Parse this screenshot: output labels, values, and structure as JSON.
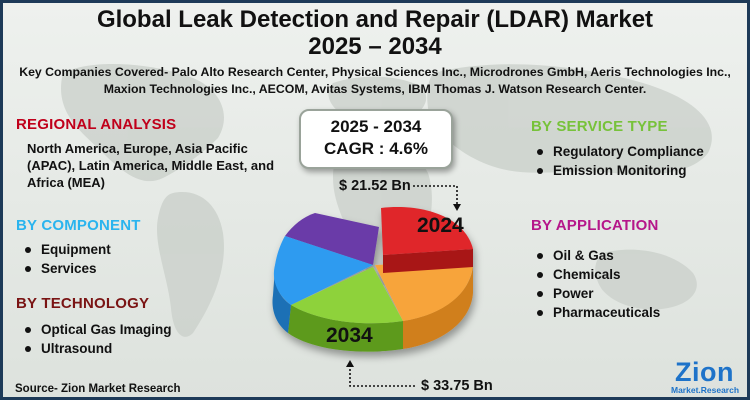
{
  "title_line1": "Global Leak Detection and Repair (LDAR) Market",
  "title_line2": "2025 – 2034",
  "companies_text": "Key Companies Covered- Palo Alto Research Center, Physical Sciences Inc., Microdrones GmbH, Aeris Technologies Inc., Maxion Technologies Inc., AECOM, Avitas Systems, IBM Thomas J. Watson Research Center.",
  "regional": {
    "heading": "REGIONAL ANALYSIS",
    "text": "North America, Europe, Asia Pacific (APAC), Latin America, Middle East, and Africa (MEA)",
    "color": "#c0001b"
  },
  "component": {
    "heading": "BY COMPONENT",
    "items": [
      "Equipment",
      "Services"
    ],
    "color": "#2ab4ee"
  },
  "technology": {
    "heading": "BY TECHNOLOGY",
    "items": [
      "Optical Gas Imaging",
      "Ultrasound"
    ],
    "color": "#7a1414"
  },
  "service_type": {
    "heading": "BY SERVICE TYPE",
    "items": [
      "Regulatory Compliance",
      "Emission Monitoring"
    ],
    "color": "#77c23a"
  },
  "application": {
    "heading": "BY APPLICATION",
    "items": [
      "Oil & Gas",
      "Chemicals",
      "Power",
      "Pharmaceuticals"
    ],
    "color": "#b5168a"
  },
  "cagr": {
    "years": "2025 - 2034",
    "value": "CAGR : 4.6%"
  },
  "market_value_2024": "$  21.52 Bn",
  "market_value_2034": "$ 33.75 Bn",
  "year_2024": "2024",
  "year_2034": "2034",
  "source": "Source- Zion Market Research",
  "logo": {
    "name": "Zion",
    "sub": "Market.Research"
  },
  "colors": {
    "pie_red": "#e0262b",
    "pie_orange": "#f7a43a",
    "pie_green": "#8ed23a",
    "pie_blue": "#2d9bf0",
    "pie_purple": "#6a3aa8",
    "frame": "#1d3a58"
  }
}
